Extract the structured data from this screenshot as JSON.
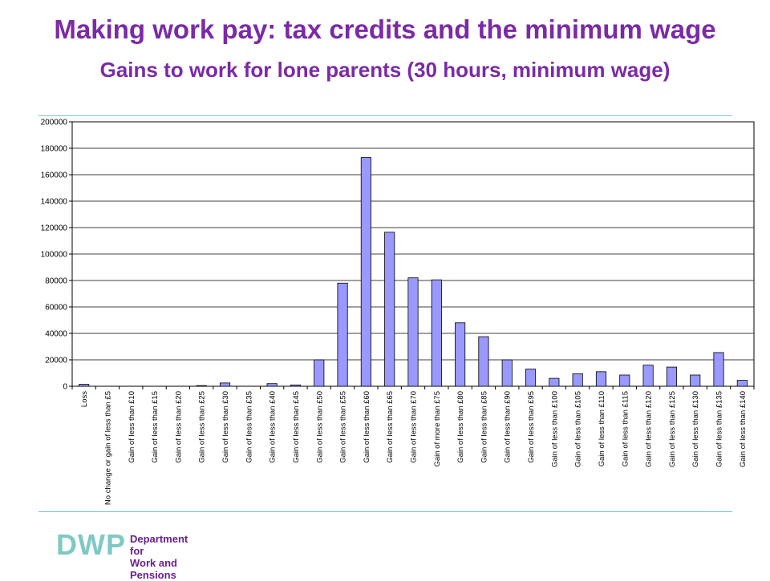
{
  "header": {
    "title": "Making work pay: tax credits and the minimum wage",
    "subtitle": "Gains to work for lone parents (30 hours, minimum wage)"
  },
  "logo": {
    "mark": "DWP",
    "line1": "Department for",
    "line2": "Work and Pensions"
  },
  "colors": {
    "title": "#7b2aa6",
    "bar_fill": "#9999ff",
    "bar_stroke": "#000000",
    "rule": "#7fc9c4"
  },
  "chart_data": {
    "type": "bar",
    "categories": [
      "Loss",
      "No change or gain of less than £5",
      "Gain of less than £10",
      "Gain of less than £15",
      "Gain of less than £20",
      "Gain of less than £25",
      "Gain of less than £30",
      "Gain of less than £35",
      "Gain of less than £40",
      "Gain of less than £45",
      "Gain of less than £50",
      "Gain of less than £55",
      "Gain of less than £60",
      "Gain of less than £65",
      "Gain of less than £70",
      "Gain of more than £75",
      "Gain of less than £80",
      "Gain of less than £85",
      "Gain of less than £90",
      "Gain of less than £95",
      "Gain of less than £100",
      "Gain of less than £105",
      "Gain of less than £110",
      "Gain of less than £115",
      "Gain of less than £120",
      "Gain of less than £125",
      "Gain of less than £130",
      "Gain of less than £135",
      "Gain of less than £140"
    ],
    "values": [
      1500,
      0,
      0,
      0,
      0,
      500,
      2500,
      0,
      2000,
      1000,
      20000,
      78000,
      173000,
      116500,
      82000,
      80500,
      48000,
      37500,
      20000,
      13000,
      6000,
      9500,
      11000,
      8500,
      16000,
      14500,
      8500,
      25500,
      4500
    ],
    "ylim": [
      0,
      200000
    ],
    "yticks": [
      0,
      20000,
      40000,
      60000,
      80000,
      100000,
      120000,
      140000,
      160000,
      180000,
      200000
    ],
    "grid": true,
    "legend": "none"
  }
}
